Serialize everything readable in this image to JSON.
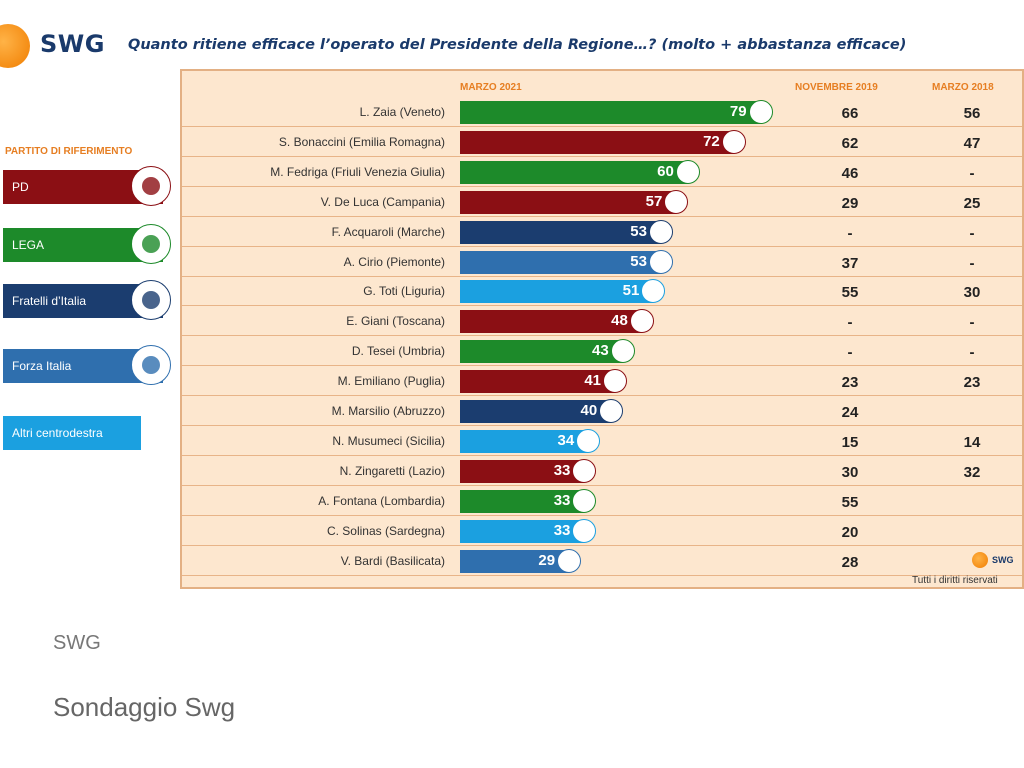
{
  "header": {
    "logo_text": "SWG",
    "question": "Quanto ritiene efficace l’operato del Presidente della Regione…? (molto + abbastanza efficace)"
  },
  "legend": {
    "title": "PARTITO DI RIFERIMENTO",
    "items": [
      {
        "label": "PD",
        "color": "#8b0f14",
        "icon": "pd-logo"
      },
      {
        "label": "LEGA",
        "color": "#1d8a2a",
        "icon": "lega-logo"
      },
      {
        "label": "Fratelli d’Italia",
        "color": "#1b3d6f",
        "icon": "fdi-logo"
      },
      {
        "label": "Forza Italia",
        "color": "#2f6fae",
        "icon": "forza-italia-logo"
      },
      {
        "label": "Altri centrodestra",
        "color": "#1ba0e0",
        "icon": ""
      }
    ]
  },
  "chart_data": {
    "type": "bar",
    "title": "Quanto ritiene efficace l’operato del Presidente della Regione…? (molto + abbastanza efficace)",
    "series_name": "MARZO 2021",
    "columns": [
      "MARZO 2021",
      "NOVEMBRE 2019",
      "MARZO 2018"
    ],
    "rows": [
      {
        "label": "L. Zaia (Veneto)",
        "value": 79,
        "party": "LEGA",
        "nov2019": "66",
        "mar2018": "56"
      },
      {
        "label": "S. Bonaccini (Emilia Romagna)",
        "value": 72,
        "party": "PD",
        "nov2019": "62",
        "mar2018": "47"
      },
      {
        "label": "M. Fedriga (Friuli Venezia Giulia)",
        "value": 60,
        "party": "LEGA",
        "nov2019": "46",
        "mar2018": "-"
      },
      {
        "label": "V. De Luca (Campania)",
        "value": 57,
        "party": "PD",
        "nov2019": "29",
        "mar2018": "25"
      },
      {
        "label": "F. Acquaroli (Marche)",
        "value": 53,
        "party": "Fratelli d’Italia",
        "nov2019": "-",
        "mar2018": "-"
      },
      {
        "label": "A. Cirio (Piemonte)",
        "value": 53,
        "party": "Forza Italia",
        "nov2019": "37",
        "mar2018": "-"
      },
      {
        "label": "G. Toti (Liguria)",
        "value": 51,
        "party": "Altri centrodestra",
        "nov2019": "55",
        "mar2018": "30"
      },
      {
        "label": "E. Giani (Toscana)",
        "value": 48,
        "party": "PD",
        "nov2019": "-",
        "mar2018": "-"
      },
      {
        "label": "D. Tesei (Umbria)",
        "value": 43,
        "party": "LEGA",
        "nov2019": "-",
        "mar2018": "-"
      },
      {
        "label": "M. Emiliano (Puglia)",
        "value": 41,
        "party": "PD",
        "nov2019": "23",
        "mar2018": "23"
      },
      {
        "label": "M. Marsilio (Abruzzo)",
        "value": 40,
        "party": "Fratelli d’Italia",
        "nov2019": "24",
        "mar2018": ""
      },
      {
        "label": "N. Musumeci (Sicilia)",
        "value": 34,
        "party": "Altri centrodestra",
        "nov2019": "15",
        "mar2018": "14"
      },
      {
        "label": "N. Zingaretti (Lazio)",
        "value": 33,
        "party": "PD",
        "nov2019": "30",
        "mar2018": "32"
      },
      {
        "label": "A. Fontana (Lombardia)",
        "value": 33,
        "party": "LEGA",
        "nov2019": "55",
        "mar2018": ""
      },
      {
        "label": "C. Solinas (Sardegna)",
        "value": 33,
        "party": "Altri centrodestra",
        "nov2019": "20",
        "mar2018": ""
      },
      {
        "label": "V. Bardi (Basilicata)",
        "value": 29,
        "party": "Forza Italia",
        "nov2019": "28",
        "mar2018": ""
      }
    ],
    "colors": {
      "PD": "#8b0f14",
      "LEGA": "#1d8a2a",
      "Fratelli d’Italia": "#1b3d6f",
      "Forza Italia": "#2f6fae",
      "Altri centrodestra": "#1ba0e0"
    },
    "xlim": [
      0,
      100
    ]
  },
  "footer": {
    "mini_logo": "SWG",
    "rights": "Tutti i diritti riservati",
    "source": "SWG",
    "caption": "Sondaggio Swg"
  }
}
